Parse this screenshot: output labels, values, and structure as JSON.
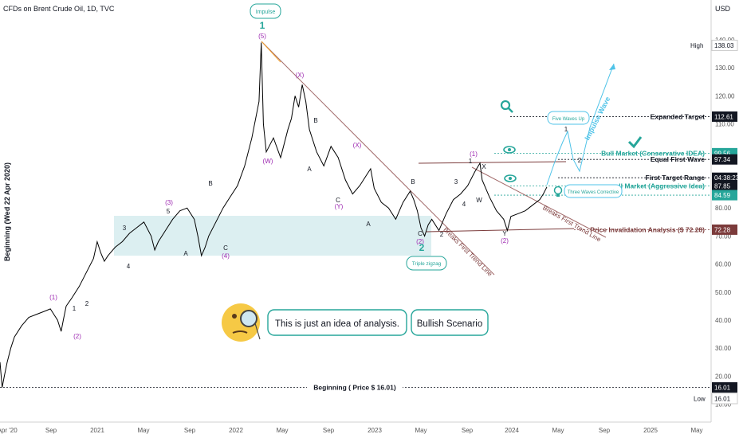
{
  "header": {
    "symbol_title": "CFDs on Brent Crude Oil, 1D, TVC"
  },
  "currency": "USD",
  "chart_data": {
    "type": "line",
    "series_name": "",
    "y_axis": {
      "ticks": [
        10,
        20,
        30,
        40,
        50,
        60,
        70,
        80,
        90,
        100,
        110,
        120,
        130,
        140
      ]
    },
    "x_axis": {
      "ticks": [
        "2 Apr '20",
        "Sep",
        "2021",
        "May",
        "Sep",
        "2022",
        "May",
        "Sep",
        "2023",
        "May",
        "Sep",
        "2024",
        "May",
        "Sep",
        "2025",
        "May"
      ]
    },
    "ylim": [
      10,
      147
    ],
    "price_points": [
      [
        0,
        25
      ],
      [
        0.3,
        16.01
      ],
      [
        0.6,
        20
      ],
      [
        1,
        25
      ],
      [
        1.5,
        30
      ],
      [
        2,
        34
      ],
      [
        3,
        38
      ],
      [
        4,
        41
      ],
      [
        5,
        42
      ],
      [
        6,
        43
      ],
      [
        7,
        44
      ],
      [
        7.5,
        42
      ],
      [
        8,
        40
      ],
      [
        8.5,
        36
      ],
      [
        8.8,
        40
      ],
      [
        9.2,
        45
      ],
      [
        10,
        48
      ],
      [
        11,
        52
      ],
      [
        12,
        57
      ],
      [
        13,
        62
      ],
      [
        13.5,
        68
      ],
      [
        14,
        64
      ],
      [
        14.5,
        61
      ],
      [
        15,
        63
      ],
      [
        16,
        66
      ],
      [
        17,
        68
      ],
      [
        18,
        71
      ],
      [
        19,
        73
      ],
      [
        20,
        75
      ],
      [
        21,
        70
      ],
      [
        21.5,
        65
      ],
      [
        22,
        68
      ],
      [
        23,
        72
      ],
      [
        24,
        76
      ],
      [
        25,
        79
      ],
      [
        26,
        80
      ],
      [
        27,
        76
      ],
      [
        27.5,
        70
      ],
      [
        28,
        63
      ],
      [
        28.5,
        66
      ],
      [
        29,
        70
      ],
      [
        30,
        75
      ],
      [
        31,
        80
      ],
      [
        32,
        84
      ],
      [
        33,
        88
      ],
      [
        34,
        95
      ],
      [
        35,
        105
      ],
      [
        36,
        118
      ],
      [
        36.3,
        139
      ],
      [
        36.6,
        110
      ],
      [
        37,
        100
      ],
      [
        38,
        105
      ],
      [
        39,
        98
      ],
      [
        40,
        108
      ],
      [
        40.5,
        112
      ],
      [
        41,
        120
      ],
      [
        41.5,
        116
      ],
      [
        42,
        124
      ],
      [
        42.5,
        118
      ],
      [
        43,
        108
      ],
      [
        44,
        100
      ],
      [
        45,
        95
      ],
      [
        46,
        102
      ],
      [
        47,
        98
      ],
      [
        48,
        90
      ],
      [
        49,
        85
      ],
      [
        50,
        88
      ],
      [
        51,
        92
      ],
      [
        51.5,
        94
      ],
      [
        52,
        87
      ],
      [
        53,
        82
      ],
      [
        54,
        80
      ],
      [
        55,
        76
      ],
      [
        56,
        82
      ],
      [
        57,
        86
      ],
      [
        57.5,
        83
      ],
      [
        58,
        79
      ],
      [
        58.5,
        73
      ],
      [
        59,
        70
      ],
      [
        59.5,
        74
      ],
      [
        60,
        76
      ],
      [
        61,
        72
      ],
      [
        62,
        78
      ],
      [
        63,
        83
      ],
      [
        64,
        85
      ],
      [
        65,
        88
      ],
      [
        66,
        93
      ],
      [
        66.7,
        96
      ],
      [
        67,
        90
      ],
      [
        68,
        84
      ],
      [
        69,
        79
      ],
      [
        70,
        76
      ],
      [
        70.5,
        72
      ],
      [
        71,
        77
      ],
      [
        72,
        78
      ],
      [
        73,
        79
      ],
      [
        74,
        81
      ],
      [
        75,
        83
      ],
      [
        75.5,
        85
      ],
      [
        76,
        87.5
      ]
    ],
    "key_levels": [
      {
        "label": "Expanded Target",
        "price": "112.61",
        "value": 112.61
      },
      {
        "label": "Bull Market (Conservative IDEA)",
        "price": "99.56",
        "value": 99.56
      },
      {
        "label": "Equal First Wave",
        "price": "97.34",
        "value": 97.34
      },
      {
        "label": "First Target Range",
        "price": "04:38:23",
        "value": 90.8
      },
      {
        "label": "ll Market (Aggressive Idea)",
        "price": "87.85",
        "value": 87.85
      },
      {
        "label": "",
        "price": "84.59",
        "value": 84.59
      },
      {
        "label": "Price Invalidation Analysis ($ 72.28)",
        "price": "72.28",
        "value": 72.28
      },
      {
        "label": "Beginning ( Price $ 16.01)",
        "price": "16.01",
        "value": 16.01
      }
    ],
    "high": {
      "label": "High",
      "value": "138.03"
    },
    "low": {
      "label": "Low",
      "value": "16.01"
    },
    "wave_labels": [
      "1",
      "(5)",
      "(X)",
      "(W)",
      "B",
      "A",
      "C",
      "(Y)",
      "(X)",
      "A",
      "B",
      "C",
      "(2)",
      "2",
      "(1)",
      "1",
      "2",
      "3",
      "4",
      "W",
      "X",
      "Y",
      "(2)",
      "(1)",
      "(2)",
      "1",
      "2",
      "3",
      "4",
      "(3)",
      "5",
      "(4)",
      "B",
      "A",
      "C",
      "1",
      "2"
    ],
    "annotations": {
      "impulse": "Impulse",
      "triple_zigzag": "Triple zigzag",
      "five_waves_up": "Five Waves Up",
      "three_waves_corrective": "Three Waves Corrective",
      "impulse_wave": "Impulse Wave",
      "breaks_first_trend_line": "Breaks First Trend Line",
      "idea_note": "This is just an idea of analysis.",
      "scenario": "Bullish Scenario",
      "y_axis_title": "Beginning (Wed 22 Apr 2020)"
    },
    "colors": {
      "candle": "#000000",
      "teal": "#26a69a",
      "purple": "#9c27b0",
      "brown": "#7b3b3b",
      "zone": "#d6ecef"
    }
  }
}
